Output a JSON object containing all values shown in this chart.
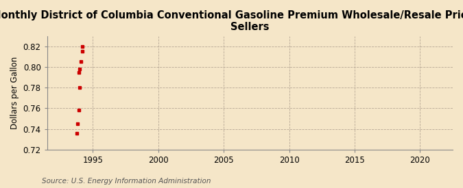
{
  "title": "Monthly District of Columbia Conventional Gasoline Premium Wholesale/Resale Price by All\nSellers",
  "ylabel": "Dollars per Gallon",
  "source": "Source: U.S. Energy Information Administration",
  "background_color": "#f5e6c8",
  "plot_bg_color": "#fdf5e0",
  "x_data": [
    1993.75,
    1993.83,
    1993.92,
    1993.92,
    1994.0,
    1994.0,
    1994.08,
    1994.17,
    1994.17
  ],
  "y_data": [
    0.736,
    0.745,
    0.758,
    0.795,
    0.78,
    0.798,
    0.805,
    0.815,
    0.82
  ],
  "marker_color": "#cc0000",
  "marker_size": 3.5,
  "xlim": [
    1991.5,
    2022.5
  ],
  "ylim": [
    0.72,
    0.83
  ],
  "xticks": [
    1995,
    2000,
    2005,
    2010,
    2015,
    2020
  ],
  "yticks": [
    0.72,
    0.74,
    0.76,
    0.78,
    0.8,
    0.82
  ],
  "grid_color": "#b0a090",
  "title_fontsize": 10.5,
  "axis_fontsize": 8.5,
  "tick_fontsize": 8.5,
  "source_fontsize": 7.5
}
